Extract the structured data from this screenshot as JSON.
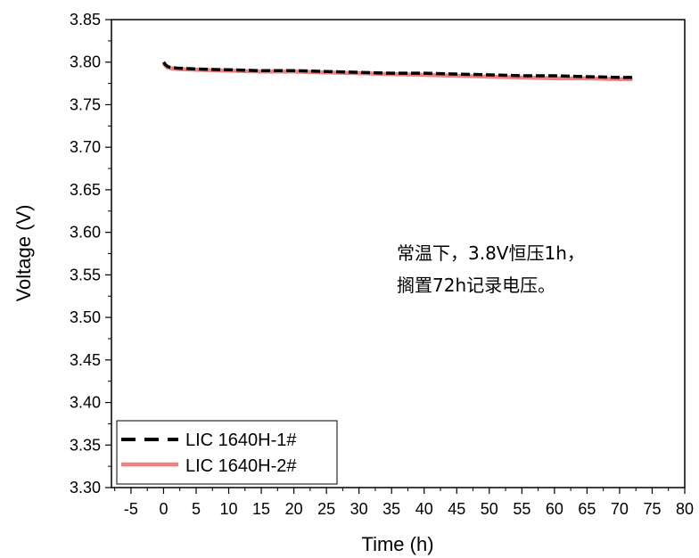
{
  "chart_data": {
    "type": "line",
    "xlabel": "Time (h)",
    "ylabel": "Voltage (V)",
    "xlim": [
      -8,
      80
    ],
    "ylim": [
      3.3,
      3.85
    ],
    "x_ticks": [
      -5,
      0,
      5,
      10,
      15,
      20,
      25,
      30,
      35,
      40,
      45,
      50,
      55,
      60,
      65,
      70,
      75,
      80
    ],
    "y_ticks": [
      3.3,
      3.35,
      3.4,
      3.45,
      3.5,
      3.55,
      3.6,
      3.65,
      3.7,
      3.75,
      3.8,
      3.85
    ],
    "legend_placement": "bottom-left",
    "grid": false,
    "annotation": [
      "常温下，3.8V恒压1h，",
      "搁置72h记录电压。"
    ],
    "series": [
      {
        "name": "LIC 1640H-1#",
        "color": "#000000",
        "style": "dashed",
        "x": [
          0,
          0.3,
          0.6,
          1,
          2,
          5,
          10,
          15,
          20,
          25,
          30,
          35,
          40,
          45,
          50,
          55,
          60,
          65,
          70,
          72
        ],
        "y": [
          3.8,
          3.797,
          3.795,
          3.794,
          3.793,
          3.792,
          3.791,
          3.79,
          3.79,
          3.789,
          3.788,
          3.787,
          3.787,
          3.786,
          3.785,
          3.784,
          3.784,
          3.783,
          3.782,
          3.782
        ]
      },
      {
        "name": "LIC 1640H-2#",
        "color": "#f08080",
        "style": "solid",
        "x": [
          0,
          0.3,
          0.6,
          1,
          2,
          5,
          10,
          15,
          20,
          25,
          30,
          35,
          40,
          45,
          50,
          55,
          60,
          65,
          70,
          72
        ],
        "y": [
          3.799,
          3.796,
          3.794,
          3.793,
          3.792,
          3.791,
          3.79,
          3.789,
          3.789,
          3.788,
          3.787,
          3.786,
          3.785,
          3.784,
          3.783,
          3.782,
          3.781,
          3.781,
          3.78,
          3.78
        ]
      }
    ]
  }
}
